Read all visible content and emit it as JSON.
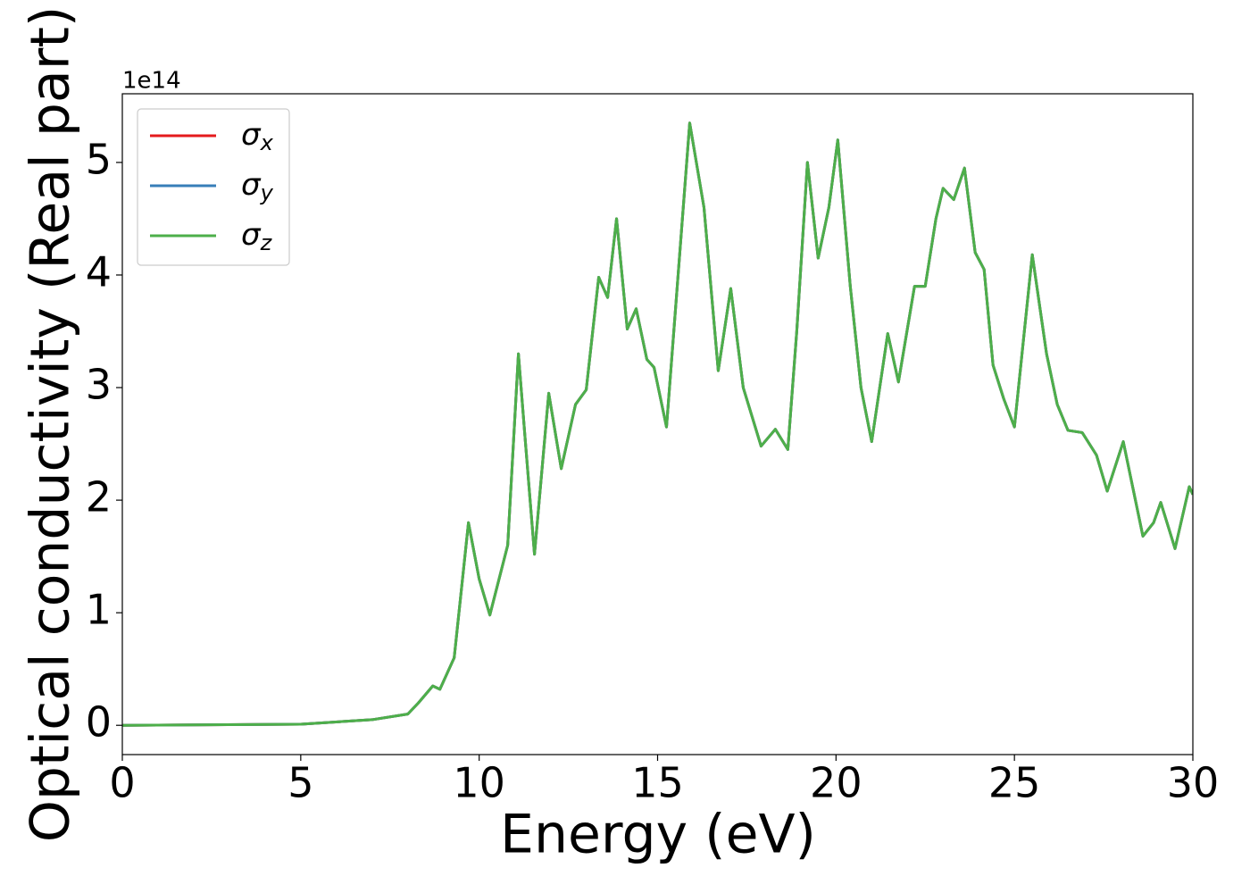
{
  "chart_data": {
    "type": "line",
    "x_label": "Energy (eV)",
    "y_label": "Optical conductivity (Real part)",
    "y_offset_label": "1e14",
    "xlim": [
      0,
      30
    ],
    "ylim": [
      -0.26,
      5.61
    ],
    "xticks": [
      0,
      5,
      10,
      15,
      20,
      25,
      30
    ],
    "yticks": [
      0,
      1,
      2,
      3,
      4,
      5
    ],
    "legend": "upper left",
    "x": [
      0,
      5,
      7,
      8,
      8.3,
      8.7,
      8.9,
      9.3,
      9.7,
      10.0,
      10.3,
      10.8,
      11.1,
      11.3,
      11.55,
      11.95,
      12.3,
      12.7,
      13.0,
      13.35,
      13.6,
      13.85,
      14.15,
      14.4,
      14.7,
      14.9,
      15.25,
      15.9,
      16.3,
      16.7,
      17.05,
      17.4,
      17.9,
      18.3,
      18.65,
      18.9,
      19.2,
      19.5,
      19.8,
      20.05,
      20.4,
      20.7,
      21.0,
      21.45,
      21.75,
      22.2,
      22.5,
      22.8,
      23.0,
      23.3,
      23.6,
      23.9,
      24.15,
      24.4,
      24.7,
      25.0,
      25.5,
      25.9,
      26.2,
      26.5,
      26.9,
      27.3,
      27.6,
      28.05,
      28.6,
      28.9,
      29.1,
      29.5,
      29.9,
      30
    ],
    "series": [
      {
        "name": "σx",
        "color": "#e41a1c",
        "values": [
          0,
          0.01,
          0.05,
          0.1,
          0.2,
          0.35,
          0.32,
          0.6,
          1.8,
          1.3,
          0.98,
          1.6,
          3.3,
          2.5,
          1.52,
          2.95,
          2.28,
          2.85,
          2.98,
          3.98,
          3.8,
          4.5,
          3.52,
          3.7,
          3.25,
          3.18,
          2.65,
          5.35,
          4.6,
          3.15,
          3.88,
          3.0,
          2.48,
          2.63,
          2.45,
          3.5,
          5.0,
          4.15,
          4.6,
          5.2,
          3.9,
          3.0,
          2.52,
          3.48,
          3.05,
          3.9,
          3.9,
          4.5,
          4.77,
          4.67,
          4.95,
          4.2,
          4.05,
          3.2,
          2.9,
          2.65,
          4.18,
          3.3,
          2.85,
          2.62,
          2.6,
          2.4,
          2.08,
          2.52,
          1.68,
          1.8,
          1.98,
          1.57,
          2.12,
          2.05
        ]
      },
      {
        "name": "σy",
        "color": "#377eb8",
        "values": [
          0,
          0.01,
          0.05,
          0.1,
          0.2,
          0.35,
          0.32,
          0.6,
          1.8,
          1.3,
          0.98,
          1.6,
          3.3,
          2.5,
          1.52,
          2.95,
          2.28,
          2.85,
          2.98,
          3.98,
          3.8,
          4.5,
          3.52,
          3.7,
          3.25,
          3.18,
          2.65,
          5.35,
          4.6,
          3.15,
          3.88,
          3.0,
          2.48,
          2.63,
          2.45,
          3.5,
          5.0,
          4.15,
          4.6,
          5.2,
          3.9,
          3.0,
          2.52,
          3.48,
          3.05,
          3.9,
          3.9,
          4.5,
          4.77,
          4.67,
          4.95,
          4.2,
          4.05,
          3.2,
          2.9,
          2.65,
          4.18,
          3.3,
          2.85,
          2.62,
          2.6,
          2.4,
          2.08,
          2.52,
          1.68,
          1.8,
          1.98,
          1.57,
          2.12,
          2.05
        ]
      },
      {
        "name": "σz",
        "color": "#4daf4a",
        "values": [
          0,
          0.01,
          0.05,
          0.1,
          0.2,
          0.35,
          0.32,
          0.6,
          1.8,
          1.3,
          0.98,
          1.6,
          3.3,
          2.5,
          1.52,
          2.95,
          2.28,
          2.85,
          2.98,
          3.98,
          3.8,
          4.5,
          3.52,
          3.7,
          3.25,
          3.18,
          2.65,
          5.35,
          4.6,
          3.15,
          3.88,
          3.0,
          2.48,
          2.63,
          2.45,
          3.5,
          5.0,
          4.15,
          4.6,
          5.2,
          3.9,
          3.0,
          2.52,
          3.48,
          3.05,
          3.9,
          3.9,
          4.5,
          4.77,
          4.67,
          4.95,
          4.2,
          4.05,
          3.2,
          2.9,
          2.65,
          4.18,
          3.3,
          2.85,
          2.62,
          2.6,
          2.4,
          2.08,
          2.52,
          1.68,
          1.8,
          1.98,
          1.57,
          2.12,
          2.05
        ]
      }
    ]
  }
}
